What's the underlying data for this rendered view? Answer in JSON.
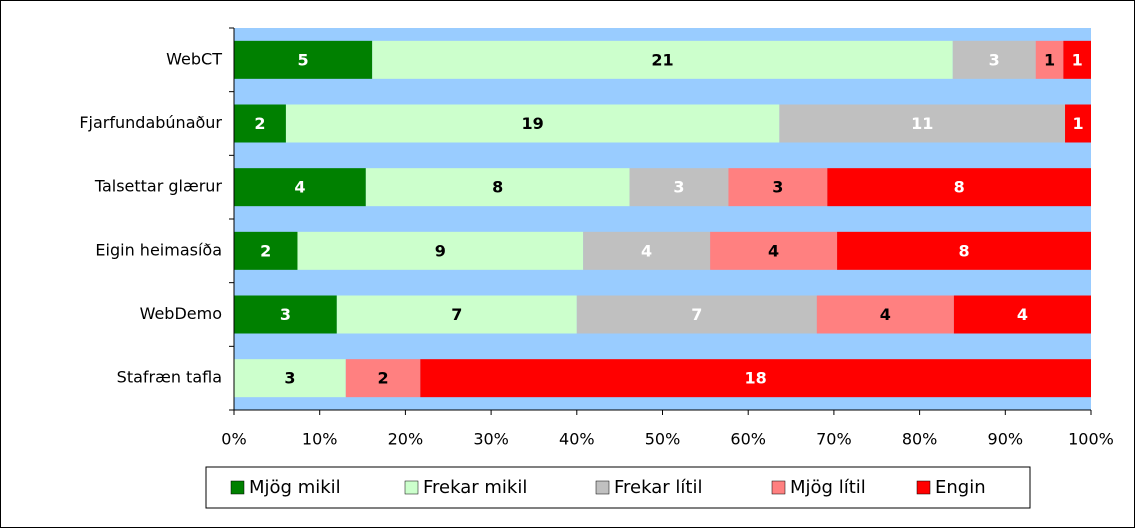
{
  "chart_data": {
    "type": "bar",
    "orientation": "horizontal",
    "stacking": "percent",
    "categories": [
      "WebCT",
      "Fjarfundabúnaður",
      "Talsettar glærur",
      "Eigin heimasíða",
      "WebDemo",
      "Stafræn tafla"
    ],
    "series": [
      {
        "name": "Mjög mikil",
        "color": "#008000",
        "label_color": "#ffffff",
        "values": [
          5,
          2,
          4,
          2,
          3,
          null
        ]
      },
      {
        "name": "Frekar mikil",
        "color": "#ccffcc",
        "label_color": "#000000",
        "values": [
          21,
          19,
          8,
          9,
          7,
          3
        ]
      },
      {
        "name": "Frekar lítil",
        "color": "#c0c0c0",
        "label_color": "#ffffff",
        "values": [
          3,
          11,
          3,
          4,
          7,
          null
        ]
      },
      {
        "name": "Mjög lítil",
        "color": "#ff8080",
        "label_color": "#000000",
        "values": [
          1,
          null,
          3,
          4,
          4,
          2
        ]
      },
      {
        "name": "Engin",
        "color": "#ff0000",
        "label_color": "#ffffff",
        "values": [
          1,
          1,
          8,
          8,
          4,
          18
        ]
      }
    ],
    "xlim": [
      0,
      100
    ],
    "xticks": [
      {
        "value": 0,
        "label": "0%"
      },
      {
        "value": 10,
        "label": "10%"
      },
      {
        "value": 20,
        "label": "20%"
      },
      {
        "value": 30,
        "label": "30%"
      },
      {
        "value": 40,
        "label": "40%"
      },
      {
        "value": 50,
        "label": "50%"
      },
      {
        "value": 60,
        "label": "60%"
      },
      {
        "value": 70,
        "label": "70%"
      },
      {
        "value": 80,
        "label": "80%"
      },
      {
        "value": 90,
        "label": "90%"
      },
      {
        "value": 100,
        "label": "100%"
      }
    ],
    "legend": "bottom"
  }
}
